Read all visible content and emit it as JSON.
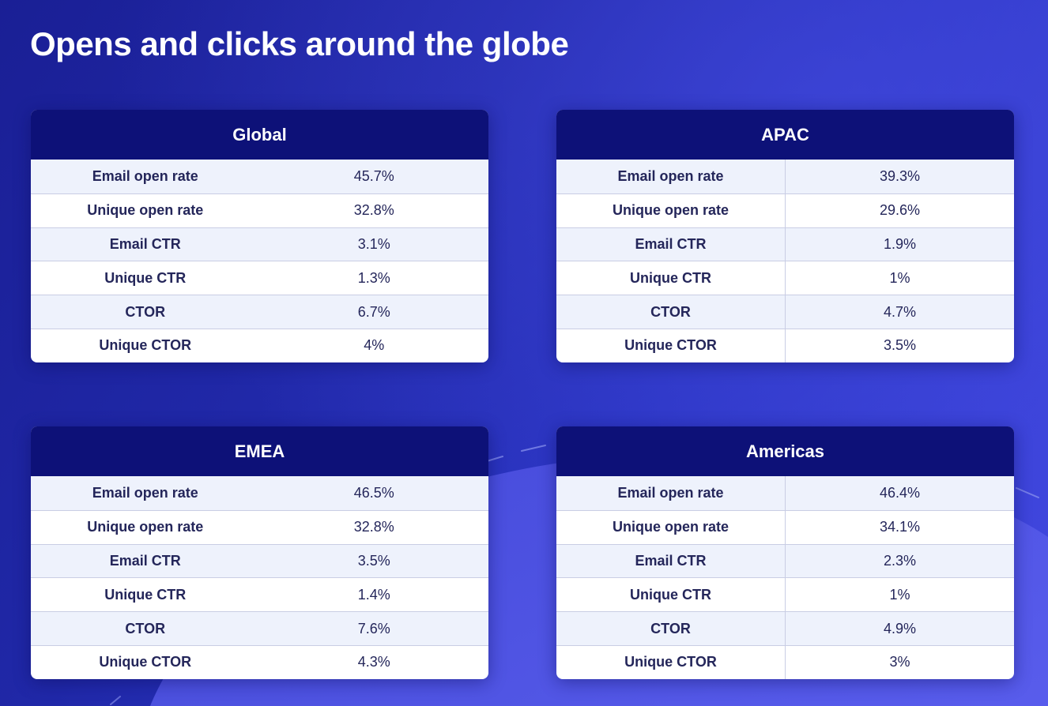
{
  "title": "Opens and clicks around the globe",
  "colors": {
    "background": "#2028a8",
    "header": "#0d1178",
    "row_alt": "#eef2fc",
    "text": "#24265a"
  },
  "chart_data": [
    {
      "type": "table",
      "title": "Global",
      "rows": [
        {
          "metric": "Email open rate",
          "value": "45.7%"
        },
        {
          "metric": "Unique open rate",
          "value": "32.8%"
        },
        {
          "metric": "Email CTR",
          "value": "3.1%"
        },
        {
          "metric": "Unique CTR",
          "value": "1.3%"
        },
        {
          "metric": "CTOR",
          "value": "6.7%"
        },
        {
          "metric": "Unique CTOR",
          "value": "4%"
        }
      ]
    },
    {
      "type": "table",
      "title": "APAC",
      "rows": [
        {
          "metric": "Email open rate",
          "value": "39.3%"
        },
        {
          "metric": "Unique open rate",
          "value": "29.6%"
        },
        {
          "metric": "Email CTR",
          "value": "1.9%"
        },
        {
          "metric": "Unique CTR",
          "value": "1%"
        },
        {
          "metric": "CTOR",
          "value": "4.7%"
        },
        {
          "metric": "Unique CTOR",
          "value": "3.5%"
        }
      ]
    },
    {
      "type": "table",
      "title": "EMEA",
      "rows": [
        {
          "metric": "Email open rate",
          "value": "46.5%"
        },
        {
          "metric": "Unique open rate",
          "value": "32.8%"
        },
        {
          "metric": "Email CTR",
          "value": "3.5%"
        },
        {
          "metric": "Unique CTR",
          "value": "1.4%"
        },
        {
          "metric": "CTOR",
          "value": "7.6%"
        },
        {
          "metric": "Unique CTOR",
          "value": "4.3%"
        }
      ]
    },
    {
      "type": "table",
      "title": "Americas",
      "rows": [
        {
          "metric": "Email open rate",
          "value": "46.4%"
        },
        {
          "metric": "Unique open rate",
          "value": "34.1%"
        },
        {
          "metric": "Email CTR",
          "value": "2.3%"
        },
        {
          "metric": "Unique CTR",
          "value": "1%"
        },
        {
          "metric": "CTOR",
          "value": "4.9%"
        },
        {
          "metric": "Unique CTOR",
          "value": "3%"
        }
      ]
    }
  ]
}
